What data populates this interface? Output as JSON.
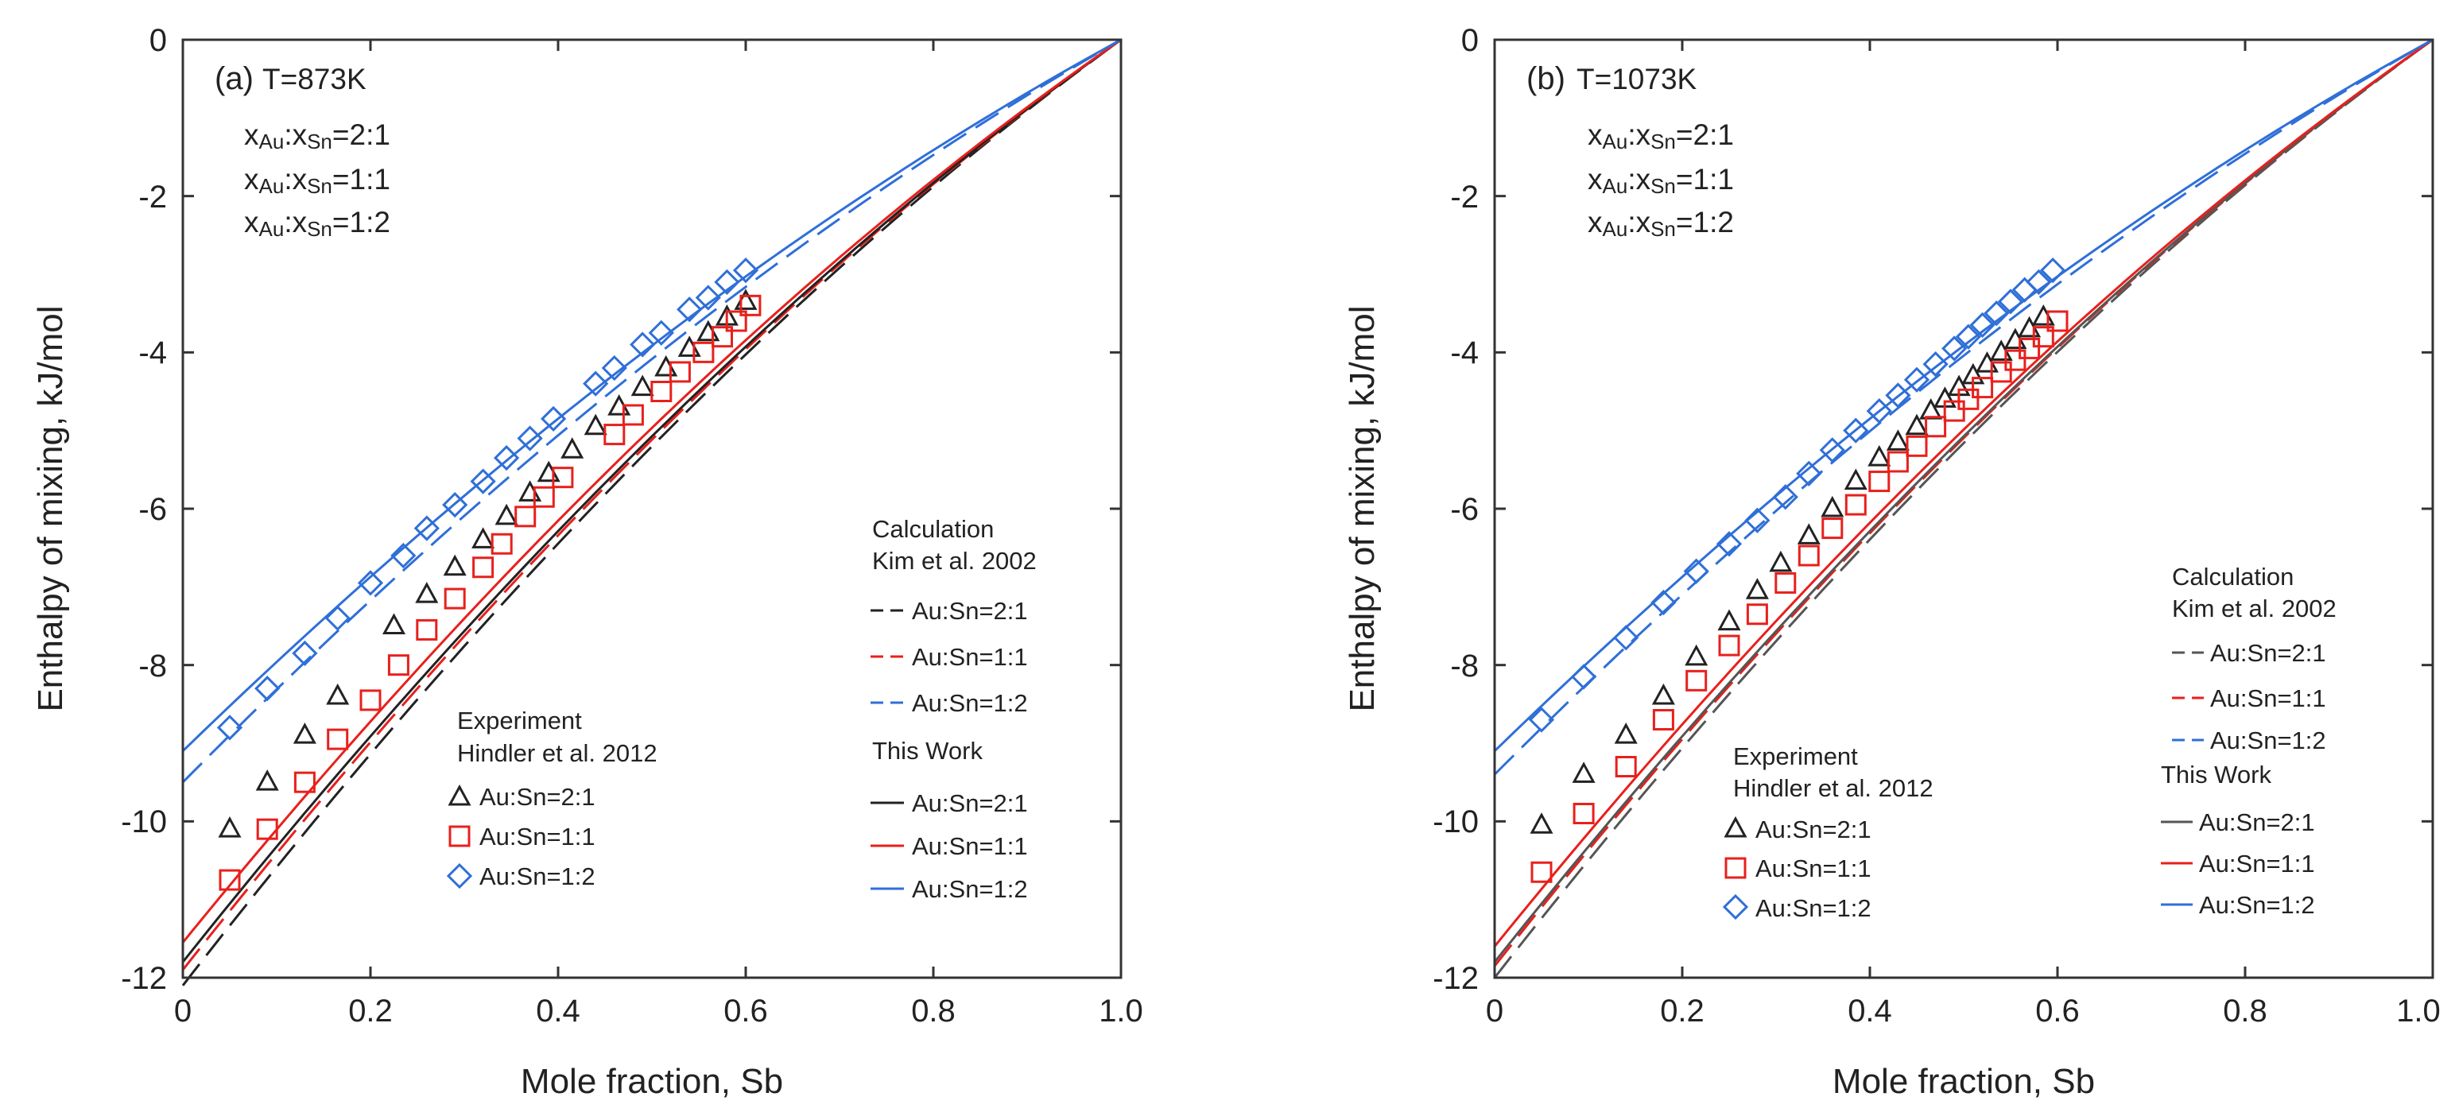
{
  "chart_data": [
    {
      "type": "line",
      "panel_label": "(a)",
      "temperature": "T=873K",
      "compositions": [
        {
          "pre": "x",
          "sub1": "Au",
          "mid": ":x",
          "sub2": "Sn",
          "post": "=2:1"
        },
        {
          "pre": "x",
          "sub1": "Au",
          "mid": ":x",
          "sub2": "Sn",
          "post": "=1:1"
        },
        {
          "pre": "x",
          "sub1": "Au",
          "mid": ":x",
          "sub2": "Sn",
          "post": "=1:2"
        }
      ],
      "xlabel": "Mole fraction, Sb",
      "ylabel": "Enthalpy of mixing, kJ/mol",
      "xlim": [
        0,
        1
      ],
      "ylim": [
        -12,
        0
      ],
      "x_ticks": [
        "0",
        "0.2",
        "0.4",
        "0.6",
        "0.8",
        "1.0"
      ],
      "y_ticks": [
        "0",
        "-2",
        "-4",
        "-6",
        "-8",
        "-10",
        "-12"
      ],
      "legend_calc": {
        "heading": "Calculation",
        "source": "Kim et al. 2002",
        "entries": [
          "Au:Sn=2:1",
          "Au:Sn=1:1",
          "Au:Sn=1:2"
        ]
      },
      "legend_this": {
        "heading": "This Work",
        "entries": [
          "Au:Sn=2:1",
          "Au:Sn=1:1",
          "Au:Sn=1:2"
        ]
      },
      "legend_exp": {
        "heading": "Experiment",
        "source": "Hindler et al. 2012",
        "entries": [
          "Au:Sn=2:1",
          "Au:Sn=1:1",
          "Au:Sn=1:2"
        ]
      },
      "series_this_work": [
        {
          "name": "Au:Sn=2:1",
          "color": "#222222",
          "y0": -11.8
        },
        {
          "name": "Au:Sn=1:1",
          "color": "#e8201c",
          "y0": -11.55
        },
        {
          "name": "Au:Sn=1:2",
          "color": "#2f6fd8",
          "y0": -9.1
        }
      ],
      "series_kim": [
        {
          "name": "Au:Sn=2:1",
          "color": "#222222",
          "y0": -12.1
        },
        {
          "name": "Au:Sn=1:1",
          "color": "#e8201c",
          "y0": -11.9
        },
        {
          "name": "Au:Sn=1:2",
          "color": "#2f6fd8",
          "y0": -9.5
        }
      ],
      "experiment": [
        {
          "name": "Au:Sn=2:1",
          "marker": "triangle",
          "color": "#222222",
          "x": [
            0.05,
            0.09,
            0.13,
            0.165,
            0.225,
            0.26,
            0.29,
            0.32,
            0.345,
            0.37,
            0.39,
            0.415,
            0.44,
            0.465,
            0.49,
            0.515,
            0.54,
            0.56,
            0.58,
            0.6
          ],
          "y": [
            -10.1,
            -9.5,
            -8.9,
            -8.4,
            -7.5,
            -7.1,
            -6.75,
            -6.4,
            -6.1,
            -5.8,
            -5.55,
            -5.25,
            -4.95,
            -4.7,
            -4.45,
            -4.2,
            -3.95,
            -3.75,
            -3.55,
            -3.35
          ]
        },
        {
          "name": "Au:Sn=1:1",
          "marker": "square",
          "color": "#e8201c",
          "x": [
            0.05,
            0.09,
            0.13,
            0.165,
            0.2,
            0.23,
            0.26,
            0.29,
            0.32,
            0.34,
            0.365,
            0.385,
            0.405,
            0.46,
            0.48,
            0.51,
            0.53,
            0.555,
            0.575,
            0.59,
            0.605
          ],
          "y": [
            -10.75,
            -10.1,
            -9.5,
            -8.95,
            -8.45,
            -8.0,
            -7.55,
            -7.15,
            -6.75,
            -6.45,
            -6.1,
            -5.85,
            -5.6,
            -5.05,
            -4.8,
            -4.5,
            -4.25,
            -4.0,
            -3.8,
            -3.6,
            -3.4
          ]
        },
        {
          "name": "Au:Sn=1:2",
          "marker": "diamond",
          "color": "#2f6fd8",
          "x": [
            0.05,
            0.09,
            0.13,
            0.165,
            0.2,
            0.235,
            0.26,
            0.29,
            0.32,
            0.345,
            0.37,
            0.395,
            0.44,
            0.46,
            0.49,
            0.51,
            0.54,
            0.56,
            0.58,
            0.6
          ],
          "y": [
            -8.8,
            -8.3,
            -7.85,
            -7.4,
            -6.95,
            -6.6,
            -6.25,
            -5.95,
            -5.65,
            -5.35,
            -5.1,
            -4.85,
            -4.4,
            -4.2,
            -3.9,
            -3.75,
            -3.45,
            -3.3,
            -3.1,
            -2.95
          ]
        }
      ]
    },
    {
      "type": "line",
      "panel_label": "(b)",
      "temperature": "T=1073K",
      "compositions": [
        {
          "pre": "x",
          "sub1": "Au",
          "mid": ":x",
          "sub2": "Sn",
          "post": "=2:1"
        },
        {
          "pre": "x",
          "sub1": "Au",
          "mid": ":x",
          "sub2": "Sn",
          "post": "=1:1"
        },
        {
          "pre": "x",
          "sub1": "Au",
          "mid": ":x",
          "sub2": "Sn",
          "post": "=1:2"
        }
      ],
      "xlabel": "Mole fraction, Sb",
      "ylabel": "Enthalpy of mixing, kJ/mol",
      "xlim": [
        0,
        1
      ],
      "ylim": [
        -12,
        0
      ],
      "x_ticks": [
        "0",
        "0.2",
        "0.4",
        "0.6",
        "0.8",
        "1.0"
      ],
      "y_ticks": [
        "0",
        "-2",
        "-4",
        "-6",
        "-8",
        "-10",
        "-12"
      ],
      "legend_calc": {
        "heading": "Calculation",
        "source": "Kim et al. 2002",
        "entries": [
          "Au:Sn=2:1",
          "Au:Sn=1:1",
          "Au:Sn=1:2"
        ]
      },
      "legend_this": {
        "heading": "This Work",
        "entries": [
          "Au:Sn=2:1",
          "Au:Sn=1:1",
          "Au:Sn=1:2"
        ]
      },
      "legend_exp": {
        "heading": "Experiment",
        "source": "Hindler et al. 2012",
        "entries": [
          "Au:Sn=2:1",
          "Au:Sn=1:1",
          "Au:Sn=1:2"
        ]
      },
      "series_this_work": [
        {
          "name": "Au:Sn=2:1",
          "color": "#555555",
          "y0": -11.8
        },
        {
          "name": "Au:Sn=1:1",
          "color": "#e8201c",
          "y0": -11.6
        },
        {
          "name": "Au:Sn=1:2",
          "color": "#2f6fd8",
          "y0": -9.1
        }
      ],
      "series_kim": [
        {
          "name": "Au:Sn=2:1",
          "color": "#555555",
          "y0": -12.0
        },
        {
          "name": "Au:Sn=1:1",
          "color": "#e8201c",
          "y0": -11.85
        },
        {
          "name": "Au:Sn=1:2",
          "color": "#2f6fd8",
          "y0": -9.4
        }
      ],
      "experiment": [
        {
          "name": "Au:Sn=2:1",
          "marker": "triangle",
          "color": "#222222",
          "x": [
            0.05,
            0.095,
            0.14,
            0.18,
            0.215,
            0.25,
            0.28,
            0.305,
            0.335,
            0.36,
            0.385,
            0.41,
            0.43,
            0.45,
            0.465,
            0.48,
            0.495,
            0.51,
            0.525,
            0.54,
            0.555,
            0.57,
            0.585
          ],
          "y": [
            -10.05,
            -9.4,
            -8.9,
            -8.4,
            -7.9,
            -7.45,
            -7.05,
            -6.7,
            -6.35,
            -6.0,
            -5.65,
            -5.35,
            -5.15,
            -4.95,
            -4.75,
            -4.6,
            -4.45,
            -4.3,
            -4.15,
            -4.0,
            -3.85,
            -3.7,
            -3.55
          ]
        },
        {
          "name": "Au:Sn=1:1",
          "marker": "square",
          "color": "#e8201c",
          "x": [
            0.05,
            0.095,
            0.14,
            0.18,
            0.215,
            0.25,
            0.28,
            0.31,
            0.335,
            0.36,
            0.385,
            0.41,
            0.43,
            0.45,
            0.47,
            0.49,
            0.505,
            0.52,
            0.54,
            0.555,
            0.57,
            0.585,
            0.6
          ],
          "y": [
            -10.65,
            -9.9,
            -9.3,
            -8.7,
            -8.2,
            -7.75,
            -7.35,
            -6.95,
            -6.6,
            -6.25,
            -5.95,
            -5.65,
            -5.4,
            -5.2,
            -4.95,
            -4.75,
            -4.6,
            -4.45,
            -4.25,
            -4.1,
            -3.95,
            -3.8,
            -3.6
          ]
        },
        {
          "name": "Au:Sn=1:2",
          "marker": "diamond",
          "color": "#2f6fd8",
          "x": [
            0.05,
            0.095,
            0.14,
            0.18,
            0.215,
            0.25,
            0.28,
            0.31,
            0.335,
            0.36,
            0.385,
            0.41,
            0.43,
            0.45,
            0.47,
            0.49,
            0.505,
            0.52,
            0.535,
            0.55,
            0.565,
            0.58,
            0.595
          ],
          "y": [
            -8.7,
            -8.15,
            -7.65,
            -7.2,
            -6.8,
            -6.45,
            -6.15,
            -5.85,
            -5.55,
            -5.25,
            -5.0,
            -4.75,
            -4.55,
            -4.35,
            -4.15,
            -3.95,
            -3.8,
            -3.65,
            -3.5,
            -3.35,
            -3.2,
            -3.1,
            -2.95
          ]
        }
      ]
    }
  ]
}
